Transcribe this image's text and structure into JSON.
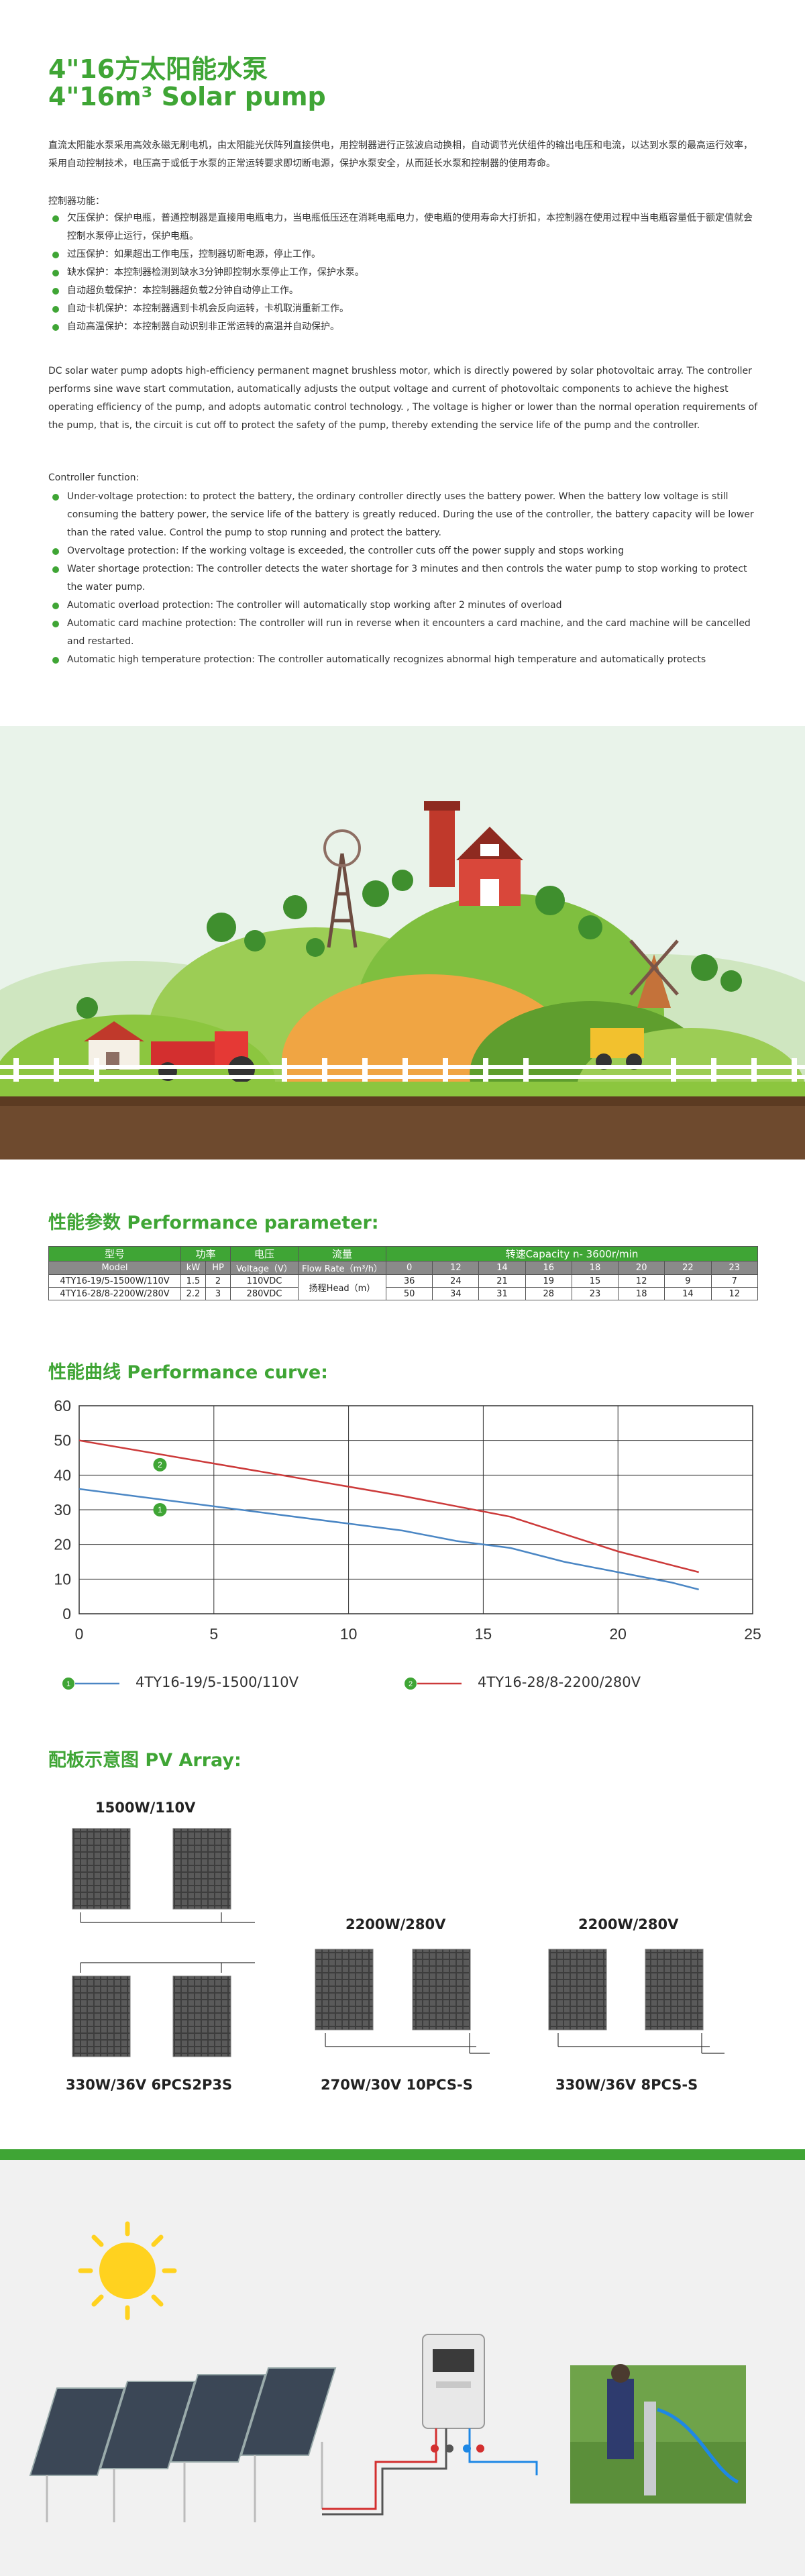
{
  "header": {
    "title_cn": "4\"16方太阳能水泵",
    "title_en": "4\"16m³ Solar pump"
  },
  "intro_cn": "直流太阳能水泵采用高效永磁无刷电机，由太阳能光伏阵列直接供电，用控制器进行正弦波启动换相，自动调节光伏组件的输出电压和电流，以达到水泵的最高运行效率，采用自动控制技术，电压高于或低于水泵的正常运转要求即切断电源，保护水泵安全，从而延长水泵和控制器的使用寿命。",
  "controller_cn": {
    "label": "控制器功能：",
    "items": [
      "欠压保护：保护电瓶，普通控制器是直接用电瓶电力，当电瓶低压还在消耗电瓶电力，使电瓶的使用寿命大打折扣，本控制器在使用过程中当电瓶容量低于额定值就会控制水泵停止运行，保护电瓶。",
      "过压保护：如果超出工作电压，控制器切断电源，停止工作。",
      "缺水保护：本控制器检测到缺水3分钟即控制水泵停止工作，保护水泵。",
      "自动超负载保护：本控制器超负载2分钟自动停止工作。",
      "自动卡机保护：本控制器遇到卡机会反向运转，卡机取消重新工作。",
      "自动高温保护：本控制器自动识别非正常运转的高温并自动保护。"
    ]
  },
  "intro_en": "DC solar water pump adopts high-efficiency permanent magnet brushless motor, which is directly powered by solar photovoltaic array. The controller performs sine wave start commutation, automatically adjusts the output voltage and current of photovoltaic components to achieve the highest operating efficiency of the pump, and adopts automatic control technology. , The voltage is higher or lower than the normal operation requirements of the pump, that is, the circuit is cut off to protect the safety of the pump, thereby extending the service life of the pump and the controller.",
  "controller_en": {
    "label": "Controller function:",
    "items": [
      "Under-voltage protection: to protect the battery, the ordinary controller directly uses the battery power. When the battery low voltage is still consuming the battery power, the service life of the battery is greatly reduced. During the use of the controller, the battery capacity will be lower than the rated value. Control the pump to stop running and protect the battery.",
      "Overvoltage protection: If the working voltage is exceeded, the controller cuts off the power supply and stops working",
      "Water shortage protection: The controller detects the water shortage for 3 minutes and then controls the water pump to stop working to protect the water pump.",
      "Automatic overload protection: The controller will automatically stop working after 2 minutes of overload",
      "Automatic card machine protection: The controller will run in reverse when it encounters a card machine, and the card machine will be cancelled and restarted.",
      "Automatic high temperature protection: The controller automatically recognizes abnormal high temperature and automatically protects"
    ]
  },
  "performance": {
    "heading": "性能参数 Performance parameter:",
    "head_cn": {
      "model": "型号",
      "power": "功率",
      "voltage": "电压",
      "flow": "流量",
      "capacity": "转速Capacity n- 3600r/min"
    },
    "head_en": {
      "model": "Model",
      "kw": "kW",
      "hp": "HP",
      "voltage": "Voltage（V）",
      "flow": "Flow Rate（m³/h）",
      "flows": [
        "0",
        "12",
        "14",
        "16",
        "18",
        "20",
        "22",
        "23"
      ]
    },
    "head_label": "扬程Head（m）",
    "rows": [
      {
        "model": "4TY16-19/5-1500W/110V",
        "kw": "1.5",
        "hp": "2",
        "voltage": "110VDC",
        "heads": [
          "36",
          "24",
          "21",
          "19",
          "15",
          "12",
          "9",
          "7"
        ]
      },
      {
        "model": "4TY16-28/8-2200W/280V",
        "kw": "2.2",
        "hp": "3",
        "voltage": "280VDC",
        "heads": [
          "50",
          "34",
          "31",
          "28",
          "23",
          "18",
          "14",
          "12"
        ]
      }
    ]
  },
  "curve": {
    "heading": "性能曲线 Performance curve:"
  },
  "chart_data": {
    "type": "line",
    "title": "",
    "xlabel": "",
    "ylabel": "",
    "xlim": [
      0,
      25
    ],
    "ylim": [
      0,
      60
    ],
    "x_ticks": [
      "0",
      "5",
      "10",
      "15",
      "20",
      "25"
    ],
    "y_ticks": [
      "0",
      "10",
      "20",
      "30",
      "40",
      "50",
      "60"
    ],
    "grid": true,
    "series": [
      {
        "name": "4TY16-19/5-1500/110V",
        "marker": "1",
        "color": "#4a86c4",
        "x": [
          0,
          12,
          14,
          16,
          18,
          20,
          22,
          23
        ],
        "y": [
          36,
          24,
          21,
          19,
          15,
          12,
          9,
          7
        ]
      },
      {
        "name": "4TY16-28/8-2200/280V",
        "marker": "2",
        "color": "#cc3a3a",
        "x": [
          0,
          12,
          14,
          16,
          18,
          20,
          22,
          23
        ],
        "y": [
          50,
          34,
          31,
          28,
          23,
          18,
          14,
          12
        ]
      }
    ]
  },
  "pv": {
    "heading": "配板示意图 PV Array:",
    "groups": [
      {
        "power": "1500W/110V",
        "spec": "330W/36V 6PCS2P3S"
      },
      {
        "power": "2200W/280V",
        "spec": "270W/30V 10PCS-S"
      },
      {
        "power": "2200W/280V",
        "spec": "330W/36V 8PCS-S"
      }
    ]
  },
  "colors": {
    "brand_green": "#3fa535",
    "sky": "#e8f3ea",
    "soil": "#6e4a2e",
    "grass": "#8cc63f"
  }
}
